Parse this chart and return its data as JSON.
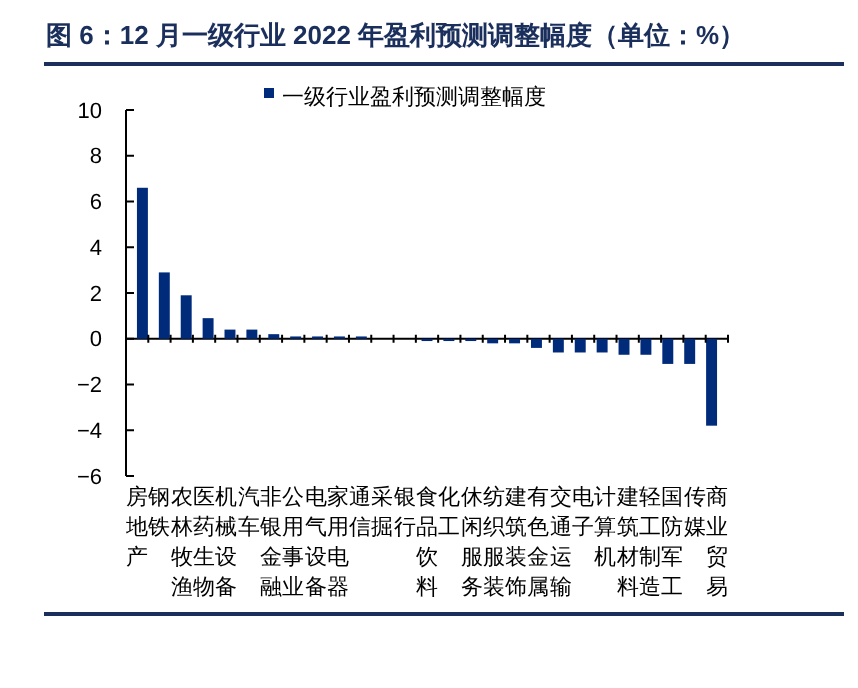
{
  "chart_data": {
    "type": "bar",
    "title": "图 6：12 月一级行业 2022 年盈利预测调整幅度（单位：%）",
    "categories": [
      "房地产",
      "钢铁",
      "农林牧渔",
      "医药生物",
      "机械设备",
      "汽车",
      "非银金融",
      "公用事业",
      "电气设备",
      "家用电器",
      "通信",
      "采掘",
      "银行",
      "食品饮料",
      "化工",
      "休闲服务",
      "纺织服装",
      "建筑装饰",
      "有色金属",
      "交通运输",
      "电子",
      "计算机",
      "建筑材料",
      "轻工制造",
      "国防军工",
      "传媒",
      "商业贸易"
    ],
    "series": [
      {
        "name": "一级行业盈利预测调整幅度",
        "color": "#002a7a",
        "values": [
          6.6,
          2.9,
          1.9,
          0.9,
          0.4,
          0.4,
          0.2,
          0.1,
          0.1,
          0.1,
          0.1,
          0,
          0,
          -0.1,
          -0.1,
          -0.1,
          -0.2,
          -0.2,
          -0.4,
          -0.6,
          -0.6,
          -0.6,
          -0.7,
          -0.7,
          -1.1,
          -1.1,
          -3.8
        ]
      }
    ],
    "ylim": [
      -6,
      10
    ],
    "yticks": [
      -6,
      -4,
      -2,
      0,
      2,
      4,
      6,
      8,
      10
    ],
    "legend": "top"
  }
}
